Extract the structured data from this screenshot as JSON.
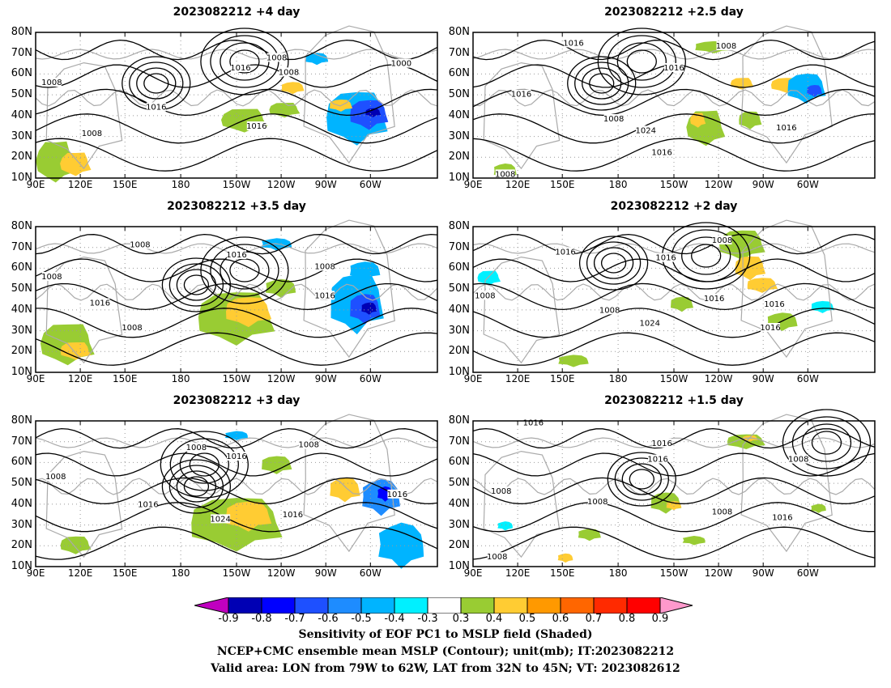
{
  "panels": [
    {
      "title": "2023082212  +4 day",
      "contour_labels": [
        "1008",
        "1016",
        "1008",
        "1000",
        "1008",
        "1016",
        "1008",
        "1016"
      ]
    },
    {
      "title": "2023082212  +2.5 day",
      "contour_labels": [
        "1016",
        "1008",
        "1016",
        "1016",
        "1008",
        "1024",
        "1016",
        "1016",
        "1008"
      ]
    },
    {
      "title": "2023082212  +3.5 day",
      "contour_labels": [
        "1008",
        "1016",
        "1008",
        "1008",
        "1016",
        "1016",
        "1008"
      ]
    },
    {
      "title": "2023082212  +2 day",
      "contour_labels": [
        "1016",
        "1008",
        "1016",
        "1016",
        "1008",
        "1008",
        "1024",
        "1016",
        "1016"
      ]
    },
    {
      "title": "2023082212  +3 day",
      "contour_labels": [
        "1008",
        "1016",
        "1008",
        "1008",
        "1016",
        "1016",
        "1024",
        "1016"
      ]
    },
    {
      "title": "2023082212  +1.5 day",
      "contour_labels": [
        "1016",
        "1016",
        "1008",
        "1016",
        "1008",
        "1008",
        "1008",
        "1016",
        "1008"
      ]
    }
  ],
  "lat_labels": [
    "80N",
    "70N",
    "60N",
    "50N",
    "40N",
    "30N",
    "20N",
    "10N"
  ],
  "lon_labels": [
    "90E",
    "120E",
    "150E",
    "180",
    "150W",
    "120W",
    "90W",
    "60W"
  ],
  "colorbar": {
    "labels": [
      "-0.9",
      "-0.8",
      "-0.7",
      "-0.6",
      "-0.5",
      "-0.4",
      "-0.3",
      "0.3",
      "0.4",
      "0.5",
      "0.6",
      "0.7",
      "0.8",
      "0.9"
    ],
    "colors": [
      "#c000c0",
      "#0000b4",
      "#0000ff",
      "#1e50ff",
      "#1e8cff",
      "#00b4ff",
      "#00f0ff",
      "#ffffff",
      "#99cc33",
      "#ffcc33",
      "#ff9900",
      "#ff6600",
      "#ff2a00",
      "#ff0000",
      "#ff99cc"
    ]
  },
  "caption": {
    "line1": "Sensitivity of EOF PC1 to MSLP field (Shaded)",
    "line2": "NCEP+CMC ensemble mean MSLP (Contour); unit(mb); IT:2023082212",
    "line3": "Valid area: LON from 79W to 62W, LAT from 32N to 45N; VT: 2023082612"
  }
}
